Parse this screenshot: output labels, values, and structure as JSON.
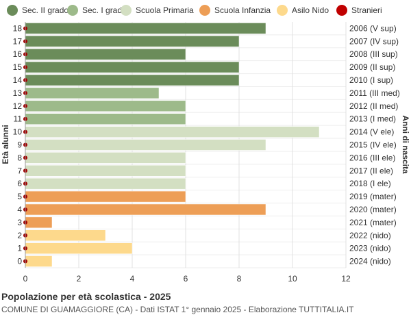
{
  "chart_data": {
    "type": "bar",
    "orientation": "horizontal",
    "title": "Popolazione per età scolastica - 2025",
    "subtitle": "COMUNE DI GUAMAGGIORE (CA) - Dati ISTAT 1° gennaio 2025 - Elaborazione TUTTITALIA.IT",
    "ylabel": "Età alunni",
    "ylabel_right": "Anni di nascita",
    "xlim": [
      0,
      12
    ],
    "xticks": [
      0,
      2,
      4,
      6,
      8,
      10,
      12
    ],
    "grid": true,
    "legend_position": "top",
    "legend": [
      {
        "name": "Sec. II grado",
        "color": "#6b8c5a"
      },
      {
        "name": "Sec. I grado",
        "color": "#9dba8a"
      },
      {
        "name": "Scuola Primaria",
        "color": "#d3dfc2"
      },
      {
        "name": "Scuola Infanzia",
        "color": "#ed9e56"
      },
      {
        "name": "Asilo Nido",
        "color": "#fdd98c"
      },
      {
        "name": "Stranieri",
        "color": "#c00000"
      }
    ],
    "rows": [
      {
        "age": "18",
        "year": "2006 (V sup)",
        "value": 9,
        "group": 0,
        "stranieri": 0
      },
      {
        "age": "17",
        "year": "2007 (IV sup)",
        "value": 8,
        "group": 0,
        "stranieri": 0
      },
      {
        "age": "16",
        "year": "2008 (III sup)",
        "value": 6,
        "group": 0,
        "stranieri": 0
      },
      {
        "age": "15",
        "year": "2009 (II sup)",
        "value": 8,
        "group": 0,
        "stranieri": 0
      },
      {
        "age": "14",
        "year": "2010 (I sup)",
        "value": 8,
        "group": 0,
        "stranieri": 0
      },
      {
        "age": "13",
        "year": "2011 (III med)",
        "value": 5,
        "group": 1,
        "stranieri": 0
      },
      {
        "age": "12",
        "year": "2012 (II med)",
        "value": 6,
        "group": 1,
        "stranieri": 0
      },
      {
        "age": "11",
        "year": "2013 (I med)",
        "value": 6,
        "group": 1,
        "stranieri": 0
      },
      {
        "age": "10",
        "year": "2014 (V ele)",
        "value": 11,
        "group": 2,
        "stranieri": 0
      },
      {
        "age": "9",
        "year": "2015 (IV ele)",
        "value": 9,
        "group": 2,
        "stranieri": 0
      },
      {
        "age": "8",
        "year": "2016 (III ele)",
        "value": 6,
        "group": 2,
        "stranieri": 0
      },
      {
        "age": "7",
        "year": "2017 (II ele)",
        "value": 6,
        "group": 2,
        "stranieri": 0
      },
      {
        "age": "6",
        "year": "2018 (I ele)",
        "value": 6,
        "group": 2,
        "stranieri": 0
      },
      {
        "age": "5",
        "year": "2019 (mater)",
        "value": 6,
        "group": 3,
        "stranieri": 0
      },
      {
        "age": "4",
        "year": "2020 (mater)",
        "value": 9,
        "group": 3,
        "stranieri": 0
      },
      {
        "age": "3",
        "year": "2021 (mater)",
        "value": 1,
        "group": 3,
        "stranieri": 0
      },
      {
        "age": "2",
        "year": "2022 (nido)",
        "value": 3,
        "group": 4,
        "stranieri": 0
      },
      {
        "age": "1",
        "year": "2023 (nido)",
        "value": 4,
        "group": 4,
        "stranieri": 0
      },
      {
        "age": "0",
        "year": "2024 (nido)",
        "value": 1,
        "group": 4,
        "stranieri": 0
      }
    ]
  }
}
